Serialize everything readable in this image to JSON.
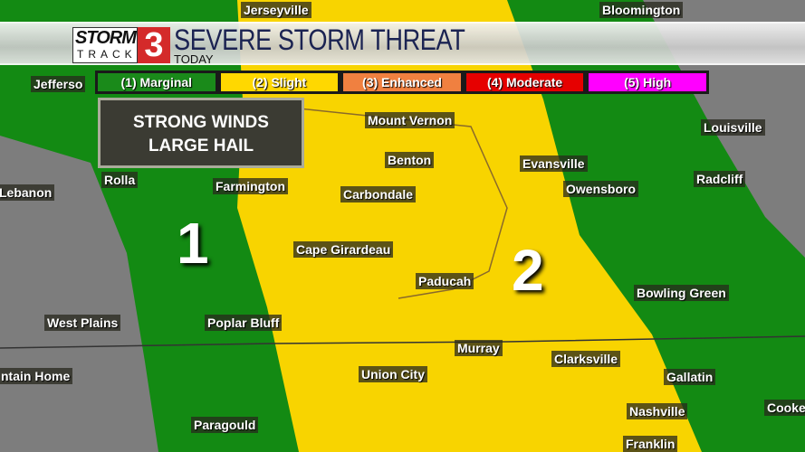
{
  "header": {
    "logo_top": "STORM",
    "logo_bottom": "TRACK",
    "logo_number": "3",
    "title": "SEVERE STORM THREAT",
    "subtitle": "TODAY"
  },
  "legend": [
    {
      "label": "(1) Marginal",
      "color": "#1a8a1a"
    },
    {
      "label": "(2) Slight",
      "color": "#ffd800"
    },
    {
      "label": "(3) Enhanced",
      "color": "#f08040"
    },
    {
      "label": "(4) Moderate",
      "color": "#e60000"
    },
    {
      "label": "(5) High",
      "color": "#ff00ff"
    }
  ],
  "threat_box": {
    "line1": "STRONG WINDS",
    "line2": "LARGE HAIL"
  },
  "risk_labels": [
    "1",
    "2"
  ],
  "colors": {
    "marginal": "#138a13",
    "slight": "#f8d400",
    "background": "#7a7a7a"
  },
  "cities": [
    "Jerseyville",
    "Bloomington",
    "Jefferso",
    "Mount Vernon",
    "Louisville",
    "Rolla",
    "Benton",
    "Evansville",
    "Radcliff",
    "Farmington",
    "Carbondale",
    "Owensboro",
    "Lebanon",
    "Cape Girardeau",
    "Paducah",
    "Bowling Green",
    "West Plains",
    "Poplar Bluff",
    "Murray",
    "Clarksville",
    "ntain Home",
    "Union City",
    "Gallatin",
    "Cooke",
    "Paragould",
    "Nashville",
    "Franklin"
  ]
}
